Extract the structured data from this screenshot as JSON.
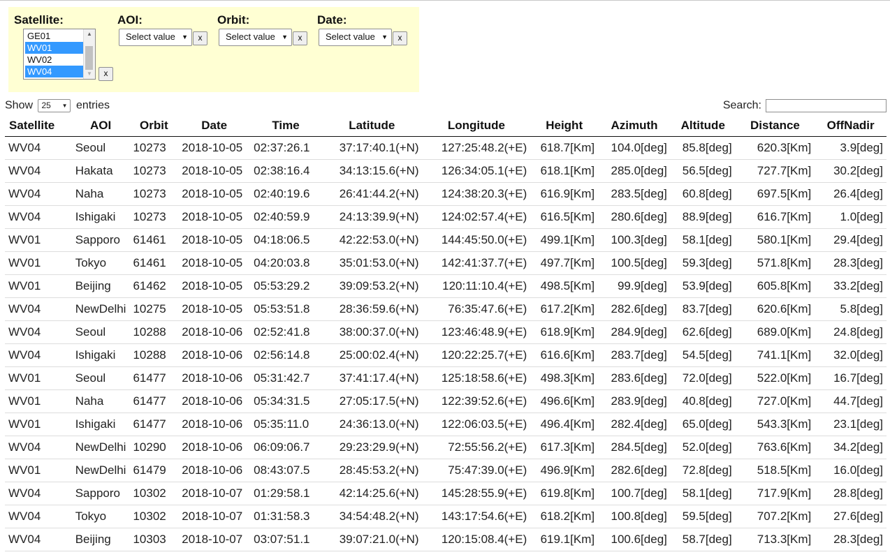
{
  "filters": {
    "satellite": {
      "label": "Satellite:",
      "options": [
        {
          "label": "GE01",
          "selected": false
        },
        {
          "label": "WV01",
          "selected": true
        },
        {
          "label": "WV02",
          "selected": false
        },
        {
          "label": "WV04",
          "selected": true
        }
      ],
      "clear_label": "x"
    },
    "aoi": {
      "label": "AOI:",
      "value": "Select value",
      "clear_label": "x"
    },
    "orbit": {
      "label": "Orbit:",
      "value": "Select value",
      "clear_label": "x"
    },
    "date": {
      "label": "Date:",
      "value": "Select value",
      "clear_label": "x"
    }
  },
  "length": {
    "show_label": "Show",
    "value": "25",
    "entries_label": "entries"
  },
  "search": {
    "label": "Search:",
    "value": ""
  },
  "table": {
    "headers": [
      "Satellite",
      "AOI",
      "Orbit",
      "Date",
      "Time",
      "Latitude",
      "Longitude",
      "Height",
      "Azimuth",
      "Altitude",
      "Distance",
      "OffNadir"
    ],
    "rows": [
      [
        "WV04",
        "Seoul",
        "10273",
        "2018-10-05",
        "02:37:26.1",
        "37:17:40.1(+N)",
        "127:25:48.2(+E)",
        "618.7[Km]",
        "104.0[deg]",
        "85.8[deg]",
        "620.3[Km]",
        "3.9[deg]"
      ],
      [
        "WV04",
        "Hakata",
        "10273",
        "2018-10-05",
        "02:38:16.4",
        "34:13:15.6(+N)",
        "126:34:05.1(+E)",
        "618.1[Km]",
        "285.0[deg]",
        "56.5[deg]",
        "727.7[Km]",
        "30.2[deg]"
      ],
      [
        "WV04",
        "Naha",
        "10273",
        "2018-10-05",
        "02:40:19.6",
        "26:41:44.2(+N)",
        "124:38:20.3(+E)",
        "616.9[Km]",
        "283.5[deg]",
        "60.8[deg]",
        "697.5[Km]",
        "26.4[deg]"
      ],
      [
        "WV04",
        "Ishigaki",
        "10273",
        "2018-10-05",
        "02:40:59.9",
        "24:13:39.9(+N)",
        "124:02:57.4(+E)",
        "616.5[Km]",
        "280.6[deg]",
        "88.9[deg]",
        "616.7[Km]",
        "1.0[deg]"
      ],
      [
        "WV01",
        "Sapporo",
        "61461",
        "2018-10-05",
        "04:18:06.5",
        "42:22:53.0(+N)",
        "144:45:50.0(+E)",
        "499.1[Km]",
        "100.3[deg]",
        "58.1[deg]",
        "580.1[Km]",
        "29.4[deg]"
      ],
      [
        "WV01",
        "Tokyo",
        "61461",
        "2018-10-05",
        "04:20:03.8",
        "35:01:53.0(+N)",
        "142:41:37.7(+E)",
        "497.7[Km]",
        "100.5[deg]",
        "59.3[deg]",
        "571.8[Km]",
        "28.3[deg]"
      ],
      [
        "WV01",
        "Beijing",
        "61462",
        "2018-10-05",
        "05:53:29.2",
        "39:09:53.2(+N)",
        "120:11:10.4(+E)",
        "498.5[Km]",
        "99.9[deg]",
        "53.9[deg]",
        "605.8[Km]",
        "33.2[deg]"
      ],
      [
        "WV04",
        "NewDelhi",
        "10275",
        "2018-10-05",
        "05:53:51.8",
        "28:36:59.6(+N)",
        "76:35:47.6(+E)",
        "617.2[Km]",
        "282.6[deg]",
        "83.7[deg]",
        "620.6[Km]",
        "5.8[deg]"
      ],
      [
        "WV04",
        "Seoul",
        "10288",
        "2018-10-06",
        "02:52:41.8",
        "38:00:37.0(+N)",
        "123:46:48.9(+E)",
        "618.9[Km]",
        "284.9[deg]",
        "62.6[deg]",
        "689.0[Km]",
        "24.8[deg]"
      ],
      [
        "WV04",
        "Ishigaki",
        "10288",
        "2018-10-06",
        "02:56:14.8",
        "25:00:02.4(+N)",
        "120:22:25.7(+E)",
        "616.6[Km]",
        "283.7[deg]",
        "54.5[deg]",
        "741.1[Km]",
        "32.0[deg]"
      ],
      [
        "WV01",
        "Seoul",
        "61477",
        "2018-10-06",
        "05:31:42.7",
        "37:41:17.4(+N)",
        "125:18:58.6(+E)",
        "498.3[Km]",
        "283.6[deg]",
        "72.0[deg]",
        "522.0[Km]",
        "16.7[deg]"
      ],
      [
        "WV01",
        "Naha",
        "61477",
        "2018-10-06",
        "05:34:31.5",
        "27:05:17.5(+N)",
        "122:39:52.6(+E)",
        "496.6[Km]",
        "283.9[deg]",
        "40.8[deg]",
        "727.0[Km]",
        "44.7[deg]"
      ],
      [
        "WV01",
        "Ishigaki",
        "61477",
        "2018-10-06",
        "05:35:11.0",
        "24:36:13.0(+N)",
        "122:06:03.5(+E)",
        "496.4[Km]",
        "282.4[deg]",
        "65.0[deg]",
        "543.3[Km]",
        "23.1[deg]"
      ],
      [
        "WV04",
        "NewDelhi",
        "10290",
        "2018-10-06",
        "06:09:06.7",
        "29:23:29.9(+N)",
        "72:55:56.2(+E)",
        "617.3[Km]",
        "284.5[deg]",
        "52.0[deg]",
        "763.6[Km]",
        "34.2[deg]"
      ],
      [
        "WV01",
        "NewDelhi",
        "61479",
        "2018-10-06",
        "08:43:07.5",
        "28:45:53.2(+N)",
        "75:47:39.0(+E)",
        "496.9[Km]",
        "282.6[deg]",
        "72.8[deg]",
        "518.5[Km]",
        "16.0[deg]"
      ],
      [
        "WV04",
        "Sapporo",
        "10302",
        "2018-10-07",
        "01:29:58.1",
        "42:14:25.6(+N)",
        "145:28:55.9(+E)",
        "619.8[Km]",
        "100.7[deg]",
        "58.1[deg]",
        "717.9[Km]",
        "28.8[deg]"
      ],
      [
        "WV04",
        "Tokyo",
        "10302",
        "2018-10-07",
        "01:31:58.3",
        "34:54:48.2(+N)",
        "143:17:54.6(+E)",
        "618.2[Km]",
        "100.8[deg]",
        "59.5[deg]",
        "707.2[Km]",
        "27.6[deg]"
      ],
      [
        "WV04",
        "Beijing",
        "10303",
        "2018-10-07",
        "03:07:51.1",
        "39:07:21.0(+N)",
        "120:15:08.4(+E)",
        "619.1[Km]",
        "100.6[deg]",
        "58.7[deg]",
        "713.3[Km]",
        "28.3[deg]"
      ]
    ]
  },
  "colors": {
    "filter_panel_bg": "#ffffd3",
    "selection_bg": "#3399ff"
  }
}
